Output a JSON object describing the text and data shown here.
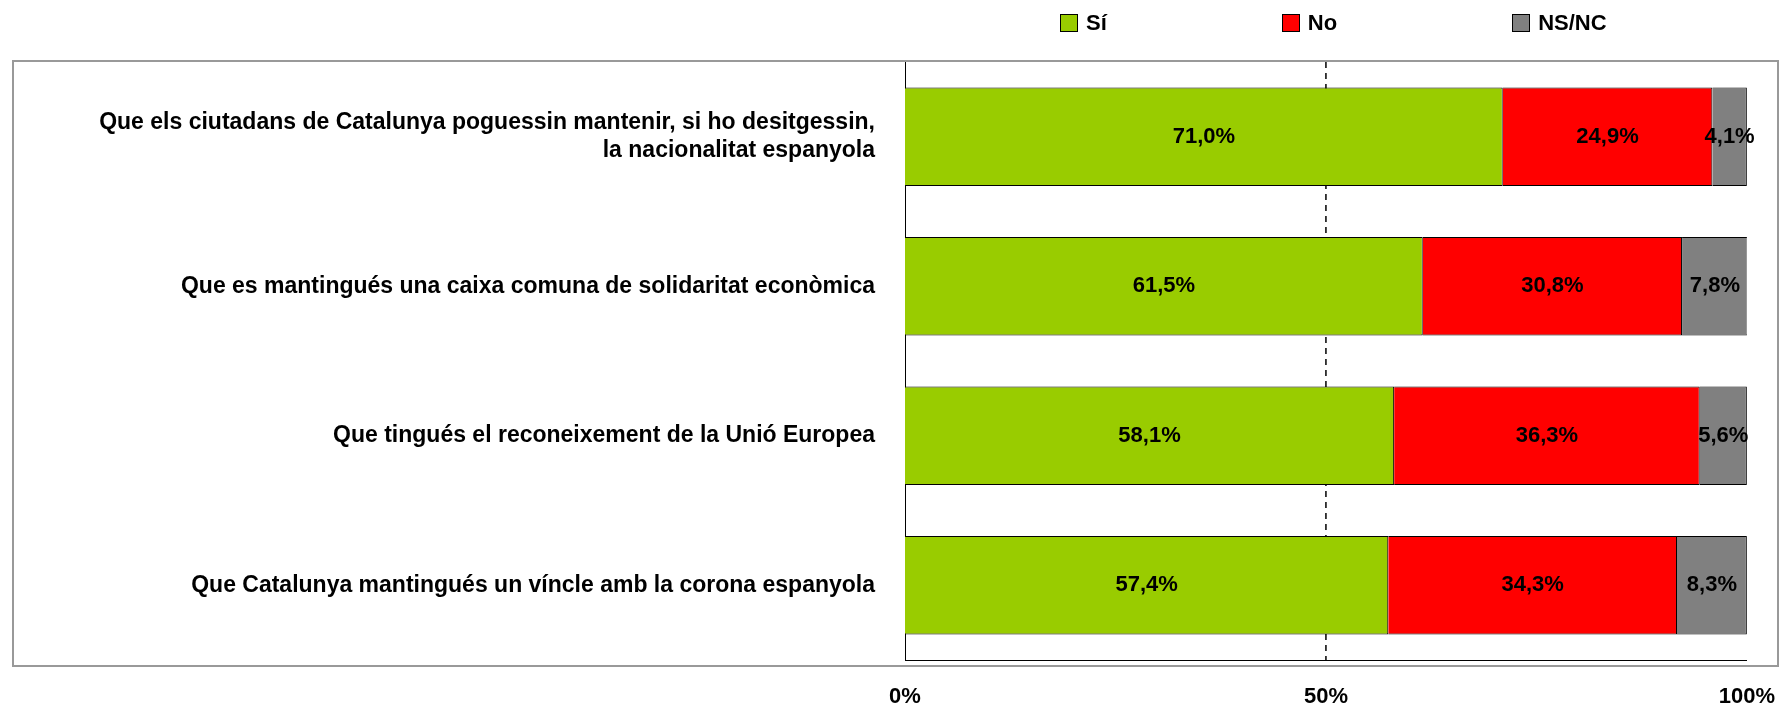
{
  "chart_data": {
    "type": "bar",
    "orientation": "horizontal",
    "stacked": true,
    "categories": [
      "Que els ciutadans de Catalunya poguessin mantenir, si ho desitgessin, la nacionalitat espanyola",
      "Que es mantingués una caixa comuna de solidaritat econòmica",
      "Que tingués el reconeixement de la Unió Europea",
      "Que Catalunya mantingués un víncle amb la corona espanyola"
    ],
    "series": [
      {
        "name": "Sí",
        "color": "#99cc00",
        "values": [
          71.0,
          61.5,
          58.1,
          57.4
        ],
        "value_labels": [
          "71,0%",
          "61,5%",
          "58,1%",
          "57,4%"
        ]
      },
      {
        "name": "No",
        "color": "#ff0000",
        "values": [
          24.9,
          30.8,
          36.3,
          34.3
        ],
        "value_labels": [
          "24,9%",
          "30,8%",
          "36,3%",
          "34,3%"
        ]
      },
      {
        "name": "NS/NC",
        "color": "#808080",
        "values": [
          4.1,
          7.8,
          5.6,
          8.3
        ],
        "value_labels": [
          "4,1%",
          "7,8%",
          "5,6%",
          "8,3%"
        ]
      }
    ],
    "xlim": [
      0,
      100
    ],
    "xticks": [
      {
        "value": 0,
        "label": "0%"
      },
      {
        "value": 50,
        "label": "50%"
      },
      {
        "value": 100,
        "label": "100%"
      }
    ],
    "ref_lines": [
      {
        "axis": "x",
        "value": 50,
        "line_style": "dashed",
        "color": "#000000"
      }
    ],
    "legend": "top",
    "grid": false
  }
}
